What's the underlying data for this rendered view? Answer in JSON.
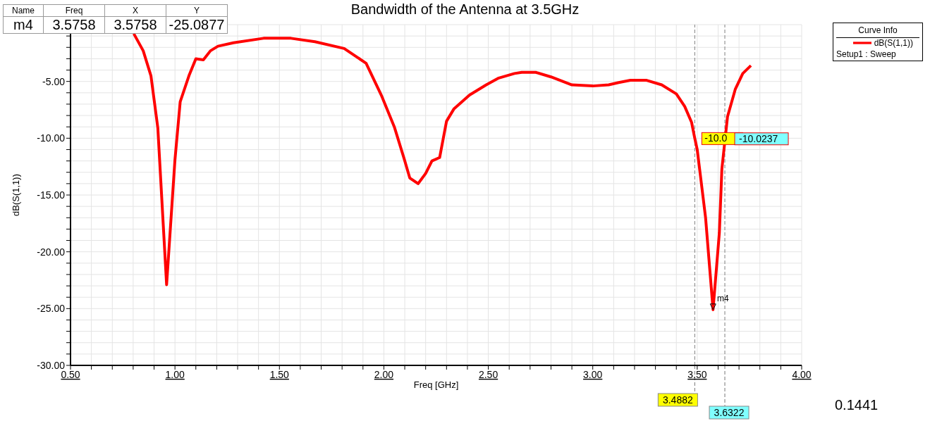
{
  "chart_data": {
    "type": "line",
    "title": "Bandwidth of the Antenna at 3.5GHz",
    "xlabel": "Freq [GHz]",
    "ylabel": "dB(S(1,1))",
    "legend_title": "Curve Info",
    "legend": "top right",
    "grid": true,
    "marker": "none",
    "line_style": "solid",
    "xlim": [
      0.5,
      4.0
    ],
    "ylim": [
      -30,
      0
    ],
    "xticks": [
      {
        "value": 0.5,
        "label": "0.50"
      },
      {
        "value": 0.6,
        "label": null
      },
      {
        "value": 0.7,
        "label": null
      },
      {
        "value": 0.8,
        "label": null
      },
      {
        "value": 0.9,
        "label": null
      },
      {
        "value": 1.0,
        "label": "1.00"
      },
      {
        "value": 1.1,
        "label": null
      },
      {
        "value": 1.2,
        "label": null
      },
      {
        "value": 1.3,
        "label": null
      },
      {
        "value": 1.4,
        "label": null
      },
      {
        "value": 1.5,
        "label": "1.50"
      },
      {
        "value": 1.6,
        "label": null
      },
      {
        "value": 1.7,
        "label": null
      },
      {
        "value": 1.8,
        "label": null
      },
      {
        "value": 1.9,
        "label": null
      },
      {
        "value": 2.0,
        "label": "2.00"
      },
      {
        "value": 2.1,
        "label": null
      },
      {
        "value": 2.2,
        "label": null
      },
      {
        "value": 2.3,
        "label": null
      },
      {
        "value": 2.4,
        "label": null
      },
      {
        "value": 2.5,
        "label": "2.50"
      },
      {
        "value": 2.6,
        "label": null
      },
      {
        "value": 2.7,
        "label": null
      },
      {
        "value": 2.8,
        "label": null
      },
      {
        "value": 2.9,
        "label": null
      },
      {
        "value": 3.0,
        "label": "3.00"
      },
      {
        "value": 3.1,
        "label": null
      },
      {
        "value": 3.2,
        "label": null
      },
      {
        "value": 3.3,
        "label": null
      },
      {
        "value": 3.4,
        "label": null
      },
      {
        "value": 3.5,
        "label": "3.50"
      },
      {
        "value": 3.6,
        "label": null
      },
      {
        "value": 3.7,
        "label": null
      },
      {
        "value": 3.8,
        "label": null
      },
      {
        "value": 3.9,
        "label": null
      },
      {
        "value": 4.0,
        "label": "4.00"
      }
    ],
    "yticks": [
      {
        "value": -30,
        "label": "-30.00"
      },
      {
        "value": -29,
        "label": null
      },
      {
        "value": -28,
        "label": null
      },
      {
        "value": -27,
        "label": null
      },
      {
        "value": -26,
        "label": null
      },
      {
        "value": -25,
        "label": "-25.00"
      },
      {
        "value": -24,
        "label": null
      },
      {
        "value": -23,
        "label": null
      },
      {
        "value": -22,
        "label": null
      },
      {
        "value": -21,
        "label": null
      },
      {
        "value": -20,
        "label": "-20.00"
      },
      {
        "value": -19,
        "label": null
      },
      {
        "value": -18,
        "label": null
      },
      {
        "value": -17,
        "label": null
      },
      {
        "value": -16,
        "label": null
      },
      {
        "value": -15,
        "label": "-15.00"
      },
      {
        "value": -14,
        "label": null
      },
      {
        "value": -13,
        "label": null
      },
      {
        "value": -12,
        "label": null
      },
      {
        "value": -11,
        "label": null
      },
      {
        "value": -10,
        "label": "-10.00"
      },
      {
        "value": -9,
        "label": null
      },
      {
        "value": -8,
        "label": null
      },
      {
        "value": -7,
        "label": null
      },
      {
        "value": -6,
        "label": null
      },
      {
        "value": -5,
        "label": "-5.00"
      },
      {
        "value": -4,
        "label": null
      },
      {
        "value": -3,
        "label": null
      },
      {
        "value": -2,
        "label": null
      },
      {
        "value": -1,
        "label": null
      },
      {
        "value": 0,
        "label": null
      }
    ],
    "series": [
      {
        "name": "dB(S(1,1))",
        "color": "#ff0000",
        "x": [
          0.803,
          0.848,
          0.885,
          0.918,
          0.96,
          1.0,
          1.025,
          1.067,
          1.1,
          1.136,
          1.17,
          1.206,
          1.28,
          1.424,
          1.555,
          1.67,
          1.81,
          1.915,
          1.99,
          2.05,
          2.097,
          2.124,
          2.164,
          2.2,
          2.23,
          2.267,
          2.3,
          2.336,
          2.41,
          2.49,
          2.55,
          2.625,
          2.66,
          2.727,
          2.8,
          2.9,
          3.0,
          3.076,
          3.124,
          3.18,
          3.258,
          3.33,
          3.4,
          3.44,
          3.473,
          3.4882,
          3.5,
          3.54,
          3.5758,
          3.606,
          3.618,
          3.645,
          3.682,
          3.718,
          3.757
        ],
        "values": [
          -0.8,
          -2.3,
          -4.5,
          -9.1,
          -22.9,
          -11.9,
          -6.8,
          -4.5,
          -3.0,
          -3.1,
          -2.3,
          -1.9,
          -1.6,
          -1.2,
          -1.2,
          -1.5,
          -2.1,
          -3.4,
          -6.3,
          -9.0,
          -11.8,
          -13.5,
          -14.0,
          -13.1,
          -12.0,
          -11.7,
          -8.5,
          -7.4,
          -6.2,
          -5.3,
          -4.7,
          -4.3,
          -4.2,
          -4.2,
          -4.6,
          -5.3,
          -5.4,
          -5.3,
          -5.1,
          -4.9,
          -4.9,
          -5.3,
          -6.1,
          -7.2,
          -8.6,
          -10.0,
          -11.0,
          -17.0,
          -25.1,
          -18.3,
          -12.7,
          -8.1,
          -5.7,
          -4.3,
          -3.6
        ]
      }
    ],
    "ref_lines": [
      {
        "axis": "x",
        "value": 3.4882,
        "label": "3.4882",
        "color": "#808080",
        "line_style": "dashed"
      },
      {
        "axis": "x",
        "value": 3.6322,
        "label": "3.6322",
        "color": "#808080",
        "line_style": "dashed"
      }
    ],
    "annotations": [
      "Name",
      "Freq",
      "X",
      "Y",
      "m4",
      "3.5758",
      "3.5758",
      "-25.0877",
      "Setup1 : Sweep",
      "0.1441",
      {
        "text": "m4",
        "x": 3.5758,
        "y": -25.0877
      },
      {
        "text": "-10.0",
        "x": 3.4882,
        "y": -10.0
      },
      {
        "text": "-10.0237",
        "x": 3.6322,
        "y": -10.0237
      }
    ]
  }
}
